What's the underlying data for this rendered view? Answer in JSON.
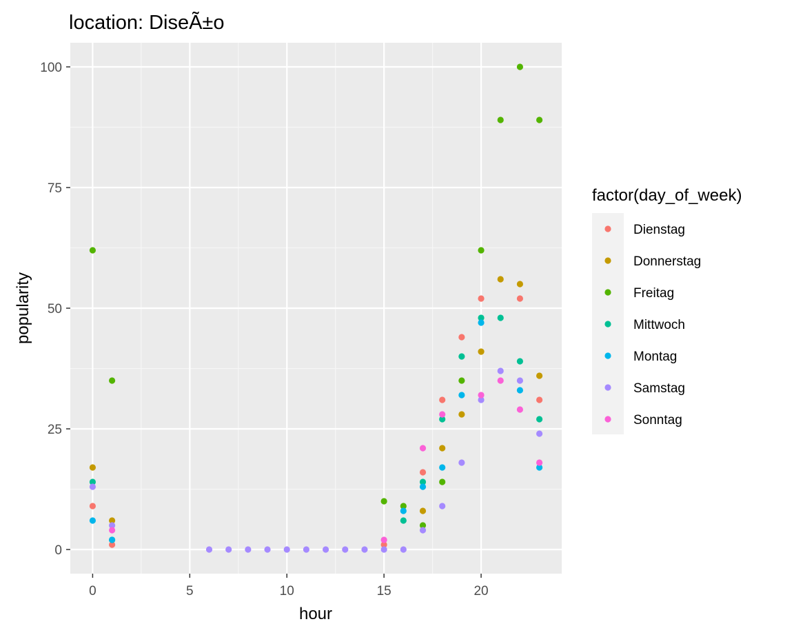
{
  "chart_data": {
    "type": "scatter",
    "title": "location: DiseÃ±o",
    "xlabel": "hour",
    "ylabel": "popularity",
    "xlim": [
      -1.15,
      24.15
    ],
    "ylim": [
      -5,
      105
    ],
    "x_ticks": [
      0,
      5,
      10,
      15,
      20
    ],
    "y_ticks": [
      0,
      25,
      50,
      75,
      100
    ],
    "x_tick_labels": [
      "0",
      "5",
      "10",
      "15",
      "20"
    ],
    "y_tick_labels": [
      "0",
      "25",
      "50",
      "75",
      "100"
    ],
    "grid": true,
    "legend": {
      "title": "factor(day_of_week)",
      "position": "right"
    },
    "series": [
      {
        "name": "Dienstag",
        "color": "#F8766D",
        "points": [
          [
            0,
            9
          ],
          [
            1,
            1
          ],
          [
            15,
            1
          ],
          [
            17,
            16
          ],
          [
            18,
            31
          ],
          [
            19,
            44
          ],
          [
            20,
            52
          ],
          [
            22,
            52
          ],
          [
            23,
            31
          ]
        ]
      },
      {
        "name": "Donnerstag",
        "color": "#C49A00",
        "points": [
          [
            0,
            17
          ],
          [
            1,
            6
          ],
          [
            17,
            8
          ],
          [
            18,
            21
          ],
          [
            19,
            28
          ],
          [
            20,
            41
          ],
          [
            21,
            56
          ],
          [
            22,
            55
          ],
          [
            23,
            36
          ]
        ]
      },
      {
        "name": "Freitag",
        "color": "#53B400",
        "points": [
          [
            0,
            62
          ],
          [
            1,
            35
          ],
          [
            15,
            10
          ],
          [
            16,
            9
          ],
          [
            17,
            5
          ],
          [
            18,
            14
          ],
          [
            19,
            35
          ],
          [
            20,
            62
          ],
          [
            21,
            89
          ],
          [
            22,
            100
          ],
          [
            23,
            89
          ]
        ]
      },
      {
        "name": "Mittwoch",
        "color": "#00C094",
        "points": [
          [
            0,
            14
          ],
          [
            1,
            2
          ],
          [
            16,
            6
          ],
          [
            17,
            14
          ],
          [
            18,
            27
          ],
          [
            19,
            40
          ],
          [
            20,
            48
          ],
          [
            21,
            48
          ],
          [
            22,
            39
          ],
          [
            23,
            27
          ]
        ]
      },
      {
        "name": "Montag",
        "color": "#00B6EB",
        "points": [
          [
            0,
            6
          ],
          [
            1,
            2
          ],
          [
            16,
            8
          ],
          [
            17,
            13
          ],
          [
            18,
            17
          ],
          [
            19,
            32
          ],
          [
            20,
            47
          ],
          [
            22,
            33
          ],
          [
            23,
            17
          ]
        ]
      },
      {
        "name": "Samstag",
        "color": "#A58AFF",
        "points": [
          [
            0,
            13
          ],
          [
            1,
            5
          ],
          [
            6,
            0
          ],
          [
            7,
            0
          ],
          [
            8,
            0
          ],
          [
            9,
            0
          ],
          [
            10,
            0
          ],
          [
            11,
            0
          ],
          [
            12,
            0
          ],
          [
            13,
            0
          ],
          [
            14,
            0
          ],
          [
            15,
            0
          ],
          [
            16,
            0
          ],
          [
            17,
            4
          ],
          [
            18,
            9
          ],
          [
            19,
            18
          ],
          [
            20,
            31
          ],
          [
            21,
            37
          ],
          [
            22,
            35
          ],
          [
            23,
            24
          ]
        ]
      },
      {
        "name": "Sonntag",
        "color": "#FB61D7",
        "points": [
          [
            1,
            4
          ],
          [
            15,
            2
          ],
          [
            17,
            21
          ],
          [
            18,
            28
          ],
          [
            20,
            32
          ],
          [
            21,
            35
          ],
          [
            22,
            29
          ],
          [
            23,
            18
          ]
        ]
      }
    ]
  }
}
